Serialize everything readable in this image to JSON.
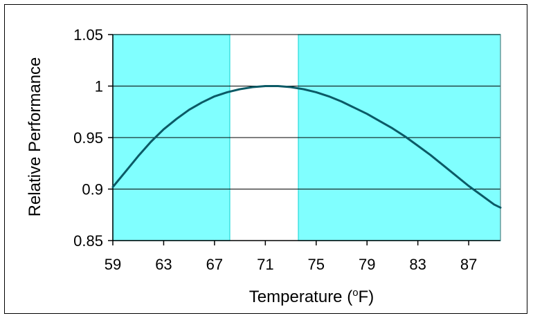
{
  "chart_data": {
    "type": "line",
    "xlabel": "Temperature (°F)",
    "xlabel_main": "Temperature (",
    "xlabel_sup": "o",
    "xlabel_end": "F)",
    "ylabel": "Relative Performance",
    "xlim": [
      59,
      89.5
    ],
    "ylim": [
      0.85,
      1.05
    ],
    "x_ticks": [
      59,
      63,
      67,
      71,
      75,
      79,
      83,
      87
    ],
    "x_tick_labels": [
      "59",
      "63",
      "67",
      "71",
      "75",
      "79",
      "83",
      "87"
    ],
    "y_ticks": [
      0.85,
      0.9,
      0.95,
      1.0,
      1.05
    ],
    "y_tick_labels": [
      "0.85",
      "0.9",
      "0.95",
      "1",
      "1.05"
    ],
    "grid": "horizontal",
    "shaded_regions": [
      {
        "x_start": 59,
        "x_end": 68.2,
        "color": "#80FFFF",
        "edge": "#40E0E0"
      },
      {
        "x_start": 73.6,
        "x_end": 89.5,
        "color": "#80FFFF",
        "edge": "#40E0E0"
      }
    ],
    "series": [
      {
        "color": "#0b5a66",
        "x": [
          59,
          60,
          61,
          62,
          63,
          64,
          65,
          66,
          67,
          68,
          69,
          70,
          71,
          72,
          73,
          74,
          75,
          76,
          77,
          78,
          79,
          80,
          81,
          82,
          83,
          84,
          85,
          86,
          87,
          88,
          89,
          89.5
        ],
        "y": [
          0.902,
          0.917,
          0.932,
          0.946,
          0.958,
          0.968,
          0.977,
          0.984,
          0.99,
          0.994,
          0.997,
          0.999,
          1.0,
          1.0,
          0.999,
          0.997,
          0.994,
          0.99,
          0.985,
          0.979,
          0.973,
          0.966,
          0.959,
          0.951,
          0.942,
          0.933,
          0.923,
          0.913,
          0.903,
          0.894,
          0.885,
          0.882
        ]
      }
    ]
  }
}
